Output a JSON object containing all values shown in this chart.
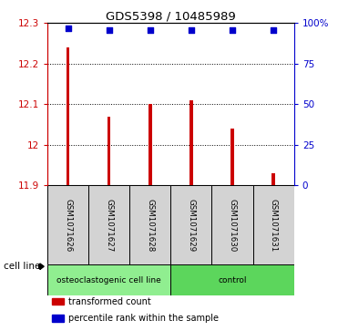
{
  "title": "GDS5398 / 10485989",
  "samples": [
    "GSM1071626",
    "GSM1071627",
    "GSM1071628",
    "GSM1071629",
    "GSM1071630",
    "GSM1071631"
  ],
  "transformed_counts": [
    12.24,
    12.07,
    12.1,
    12.11,
    12.04,
    11.93
  ],
  "percentile_ranks": [
    97,
    96,
    96,
    96,
    96,
    96
  ],
  "ylim_left": [
    11.9,
    12.3
  ],
  "ylim_right": [
    0,
    100
  ],
  "yticks_left": [
    11.9,
    12.0,
    12.1,
    12.2,
    12.3
  ],
  "ytick_labels_left": [
    "11.9",
    "12",
    "12.1",
    "12.2",
    "12.3"
  ],
  "yticks_right": [
    0,
    25,
    50,
    75,
    100
  ],
  "ytick_labels_right": [
    "0",
    "25",
    "50",
    "75",
    "100%"
  ],
  "bar_color": "#cc0000",
  "dot_color": "#0000cc",
  "groups": [
    {
      "label": "osteoclastogenic cell line",
      "start": 0,
      "end": 3,
      "color": "#90ee90"
    },
    {
      "label": "control",
      "start": 3,
      "end": 6,
      "color": "#5cd65c"
    }
  ],
  "cell_line_label": "cell line",
  "legend_items": [
    {
      "color": "#cc0000",
      "label": "transformed count"
    },
    {
      "color": "#0000cc",
      "label": "percentile rank within the sample"
    }
  ],
  "bar_width": 0.08,
  "baseline": 11.9
}
